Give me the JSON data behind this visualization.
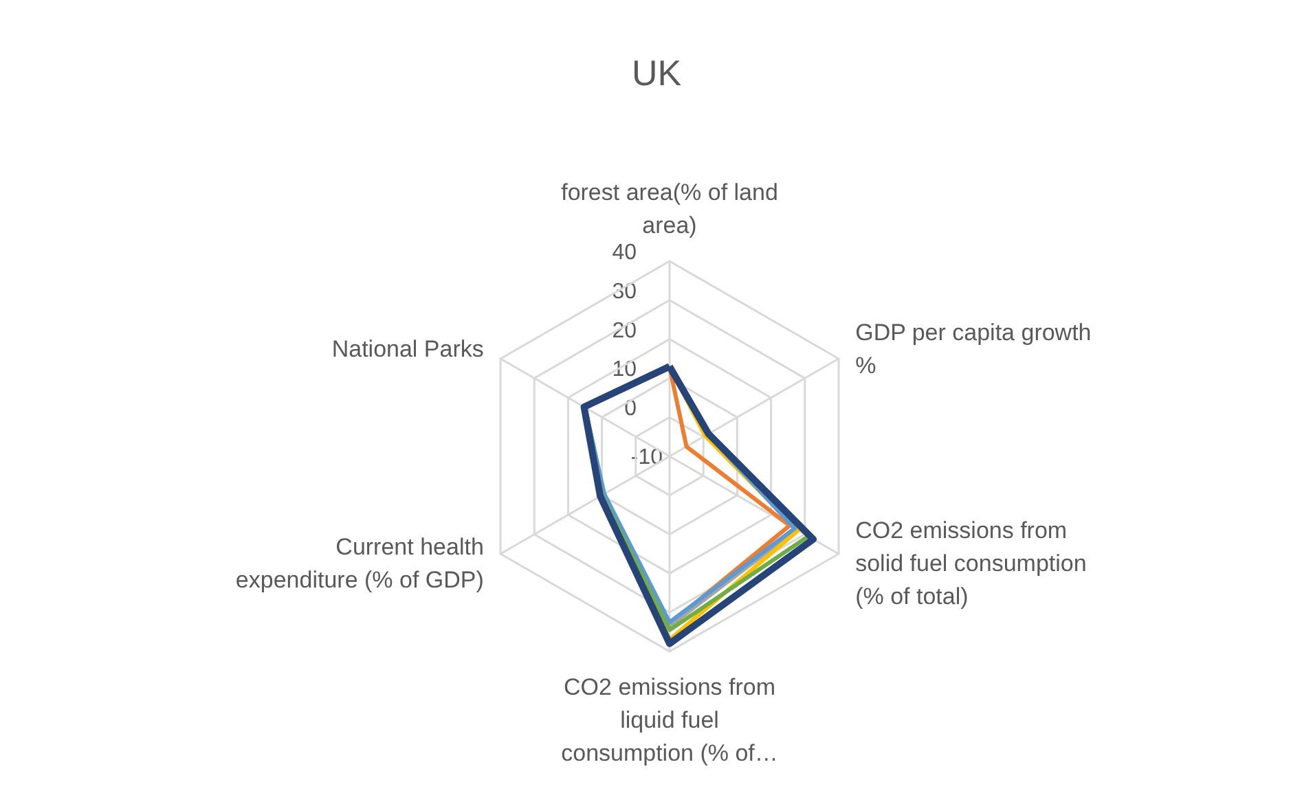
{
  "chart_data": {
    "type": "radar",
    "title": "UK",
    "categories": [
      "forest area(% of land area)",
      "GDP per capita growth %",
      "CO2 emissions from solid fuel consumption (% of total)",
      "CO2 emissions from liquid fuel consumption (% of…",
      "Current health expenditure (% of GDP)",
      "National Parks"
    ],
    "ylim": [
      -10,
      40
    ],
    "yticks": [
      -10,
      0,
      10,
      20,
      30,
      40
    ],
    "grid": true,
    "series": [
      {
        "color": "#4472c4",
        "values": [
          12.8,
          1.5,
          27,
          33,
          9.5,
          15
        ]
      },
      {
        "color": "#ed7d31",
        "values": [
          12.8,
          -5,
          25.5,
          33,
          9.5,
          15
        ]
      },
      {
        "color": "#a5a5a5",
        "values": [
          12.9,
          1,
          27.5,
          33.5,
          9.5,
          15
        ]
      },
      {
        "color": "#ffc000",
        "values": [
          13,
          0.5,
          28,
          37,
          9.8,
          15
        ]
      },
      {
        "color": "#5b9bd5",
        "values": [
          13,
          1.3,
          27,
          32.5,
          9.3,
          15
        ]
      },
      {
        "color": "#70ad47",
        "values": [
          13,
          1.5,
          31,
          34.5,
          10,
          15
        ]
      },
      {
        "color": "#264478",
        "values": [
          13,
          1.5,
          32.5,
          38,
          10.5,
          15.3
        ]
      }
    ]
  }
}
